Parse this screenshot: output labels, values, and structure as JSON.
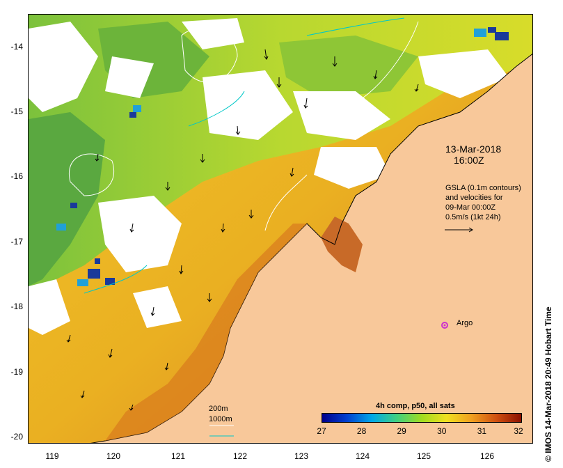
{
  "map": {
    "date": "13-Mar-2018",
    "time": "16:00Z",
    "gsla_lines": [
      "GSLA (0.1m contours)",
      "and velocities for",
      "09-Mar 00:00Z",
      "0.5m/s (1kt 24h)"
    ],
    "argo_label": "Argo",
    "depth_200": "200m",
    "depth_1000": "1000m",
    "colorbar_title": "4h comp, p50, all sats",
    "colorbar_ticks": [
      "27",
      "28",
      "29",
      "30",
      "31",
      "32"
    ],
    "credit": "© IMOS 14-Mar-2018 20:49 Hobart Time",
    "lat_labels": [
      "-14",
      "-15",
      "-16",
      "-17",
      "-18",
      "-19",
      "-20"
    ],
    "lon_labels": [
      "119",
      "120",
      "121",
      "122",
      "123",
      "124",
      "125",
      "126"
    ],
    "colors": {
      "land": "#f8c89a",
      "cloud": "#ffffff",
      "warm": "#e8a020",
      "hot": "#c8601a",
      "mid": "#f2c020",
      "cool_green": "#9ac832",
      "green": "#5aa840",
      "cold": "#1a3a9a",
      "contour": "#00c8c8",
      "argo": "#cc33cc"
    }
  }
}
